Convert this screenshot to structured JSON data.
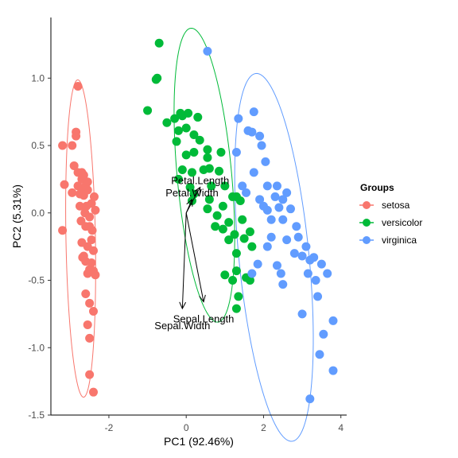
{
  "chart_data": {
    "type": "scatter",
    "xlabel": "PC1 (92.46%)",
    "ylabel": "PC2 (5.31%)",
    "xlim": [
      -3.5,
      4.15
    ],
    "ylim": [
      -1.5,
      1.45
    ],
    "x_ticks": [
      -2,
      0,
      2,
      4
    ],
    "x_tick_labels": [
      "-2",
      "0",
      "2",
      "4"
    ],
    "y_ticks": [
      1.0,
      0.5,
      0.0,
      -0.5,
      -1.0,
      -1.5
    ],
    "y_tick_labels": [
      "1.0",
      "0.5",
      "0.0",
      "-0.5",
      "-1.0",
      "-1.5"
    ],
    "grid": false,
    "legend": {
      "title": "Groups",
      "position": "right"
    },
    "series": [
      {
        "name": "setosa",
        "color": "#F8766D",
        "points": [
          [
            -3.2,
            0.5
          ],
          [
            -3.15,
            0.21
          ],
          [
            -3.2,
            -0.13
          ],
          [
            -2.95,
            0.5
          ],
          [
            -2.95,
            0.15
          ],
          [
            -2.9,
            0.35
          ],
          [
            -2.8,
            0.94
          ],
          [
            -2.85,
            0.6
          ],
          [
            -2.85,
            0.57
          ],
          [
            -2.8,
            0.3
          ],
          [
            -2.8,
            0.2
          ],
          [
            -2.75,
            0.14
          ],
          [
            -2.75,
            0.05
          ],
          [
            -2.72,
            -0.06
          ],
          [
            -2.7,
            0.3
          ],
          [
            -2.7,
            0.25
          ],
          [
            -2.68,
            0.16
          ],
          [
            -2.65,
            0.28
          ],
          [
            -2.65,
            0.13
          ],
          [
            -2.6,
            0.2
          ],
          [
            -2.62,
            0.0
          ],
          [
            -2.6,
            -0.1
          ],
          [
            -2.58,
            0.05
          ],
          [
            -2.55,
            0.23
          ],
          [
            -2.55,
            0.17
          ],
          [
            -2.55,
            -0.25
          ],
          [
            -2.5,
            -0.03
          ],
          [
            -2.5,
            -0.1
          ],
          [
            -2.45,
            -0.2
          ],
          [
            -2.45,
            0.07
          ],
          [
            -2.43,
            -0.13
          ],
          [
            -2.4,
            -0.28
          ],
          [
            -2.38,
            0.12
          ],
          [
            -2.35,
            0.02
          ],
          [
            -2.7,
            -0.22
          ],
          [
            -2.68,
            -0.33
          ],
          [
            -2.65,
            -0.32
          ],
          [
            -2.6,
            -0.36
          ],
          [
            -2.55,
            -0.45
          ],
          [
            -2.5,
            -0.42
          ],
          [
            -2.45,
            -0.37
          ],
          [
            -2.4,
            -0.43
          ],
          [
            -2.35,
            -0.46
          ],
          [
            -2.6,
            -0.6
          ],
          [
            -2.5,
            -0.67
          ],
          [
            -2.4,
            -0.73
          ],
          [
            -2.55,
            -0.83
          ],
          [
            -2.5,
            -0.93
          ],
          [
            -2.5,
            -1.2
          ],
          [
            -2.4,
            -1.33
          ]
        ]
      },
      {
        "name": "versicolor",
        "color": "#00BA38",
        "points": [
          [
            -0.7,
            1.26
          ],
          [
            -0.75,
            1.0
          ],
          [
            -0.78,
            0.99
          ],
          [
            -1.0,
            0.76
          ],
          [
            -0.5,
            0.67
          ],
          [
            -0.3,
            0.7
          ],
          [
            -0.2,
            0.61
          ],
          [
            -0.15,
            0.74
          ],
          [
            -0.1,
            0.72
          ],
          [
            0.05,
            0.74
          ],
          [
            0.3,
            0.71
          ],
          [
            0.0,
            0.63
          ],
          [
            -0.25,
            0.53
          ],
          [
            0.2,
            0.58
          ],
          [
            0.35,
            0.54
          ],
          [
            0.55,
            0.47
          ],
          [
            0.2,
            0.45
          ],
          [
            0.55,
            0.41
          ],
          [
            0.9,
            0.45
          ],
          [
            0.0,
            0.43
          ],
          [
            0.15,
            0.3
          ],
          [
            0.45,
            0.32
          ],
          [
            0.85,
            0.31
          ],
          [
            -0.1,
            0.32
          ],
          [
            -0.2,
            0.25
          ],
          [
            0.1,
            0.19
          ],
          [
            0.2,
            0.14
          ],
          [
            0.65,
            0.2
          ],
          [
            0.6,
            0.1
          ],
          [
            0.6,
            0.33
          ],
          [
            0.15,
            0.09
          ],
          [
            1.0,
            0.2
          ],
          [
            1.2,
            0.12
          ],
          [
            0.55,
            0.03
          ],
          [
            0.8,
            -0.02
          ],
          [
            0.95,
            0.05
          ],
          [
            1.3,
            0.12
          ],
          [
            1.4,
            0.09
          ],
          [
            0.75,
            -0.1
          ],
          [
            0.95,
            -0.12
          ],
          [
            1.1,
            -0.07
          ],
          [
            1.25,
            -0.16
          ],
          [
            1.45,
            -0.05
          ],
          [
            1.5,
            -0.19
          ],
          [
            1.65,
            -0.14
          ],
          [
            1.7,
            -0.25
          ],
          [
            1.1,
            -0.2
          ],
          [
            1.3,
            -0.3
          ],
          [
            1.3,
            -0.43
          ],
          [
            1.0,
            -0.46
          ],
          [
            1.2,
            -0.5
          ],
          [
            1.35,
            -0.62
          ],
          [
            1.55,
            -0.48
          ],
          [
            1.65,
            -0.5
          ],
          [
            1.3,
            -0.71
          ]
        ]
      },
      {
        "name": "virginica",
        "color": "#619CFF",
        "points": [
          [
            0.55,
            1.2
          ],
          [
            1.35,
            0.7
          ],
          [
            1.3,
            0.45
          ],
          [
            1.45,
            0.2
          ],
          [
            1.55,
            0.15
          ],
          [
            1.6,
            0.61
          ],
          [
            1.7,
            0.6
          ],
          [
            1.75,
            0.75
          ],
          [
            1.9,
            0.57
          ],
          [
            1.95,
            0.5
          ],
          [
            2.05,
            0.38
          ],
          [
            1.75,
            0.3
          ],
          [
            2.1,
            0.2
          ],
          [
            1.9,
            0.1
          ],
          [
            2.0,
            0.05
          ],
          [
            2.1,
            0.02
          ],
          [
            2.2,
            -0.05
          ],
          [
            2.3,
            0.12
          ],
          [
            2.35,
            0.2
          ],
          [
            2.4,
            0.04
          ],
          [
            2.5,
            0.1
          ],
          [
            2.6,
            0.15
          ],
          [
            2.5,
            -0.05
          ],
          [
            2.6,
            -0.2
          ],
          [
            2.7,
            0.03
          ],
          [
            2.85,
            -0.1
          ],
          [
            2.9,
            -0.18
          ],
          [
            2.8,
            -0.3
          ],
          [
            3.0,
            -0.32
          ],
          [
            3.1,
            -0.25
          ],
          [
            3.2,
            -0.35
          ],
          [
            3.3,
            -0.33
          ],
          [
            3.15,
            -0.45
          ],
          [
            3.35,
            -0.5
          ],
          [
            3.4,
            -0.62
          ],
          [
            3.5,
            -0.38
          ],
          [
            3.65,
            -0.45
          ],
          [
            3.8,
            -0.8
          ],
          [
            3.55,
            -0.9
          ],
          [
            3.45,
            -1.05
          ],
          [
            3.0,
            -0.75
          ],
          [
            2.5,
            -0.53
          ],
          [
            2.35,
            -0.39
          ],
          [
            2.45,
            -0.45
          ],
          [
            2.2,
            -0.18
          ],
          [
            2.1,
            -0.25
          ],
          [
            1.85,
            -0.38
          ],
          [
            1.7,
            -0.45
          ],
          [
            3.2,
            -1.38
          ],
          [
            3.8,
            -1.17
          ]
        ]
      }
    ],
    "ellipses": [
      {
        "group": "setosa",
        "center": [
          -2.73,
          -0.19
        ],
        "semi_major": 1.18,
        "semi_minor": 0.38,
        "angle_deg": -86
      },
      {
        "group": "versicolor",
        "center": [
          0.47,
          0.28
        ],
        "semi_major": 1.17,
        "semi_minor": 0.66,
        "angle_deg": -64
      },
      {
        "group": "virginica",
        "center": [
          2.27,
          -0.33
        ],
        "semi_major": 1.48,
        "semi_minor": 0.84,
        "angle_deg": -62
      }
    ],
    "loadings": [
      {
        "label": "Petal.Length",
        "x": 0.36,
        "y": 0.19
      },
      {
        "label": "Petal.Width",
        "x": 0.15,
        "y": 0.1
      },
      {
        "label": "Sepal.Length",
        "x": 0.45,
        "y": -0.66
      },
      {
        "label": "Sepal.Width",
        "x": -0.1,
        "y": -0.71
      }
    ],
    "loading_origin": [
      0.0,
      0.0
    ]
  }
}
